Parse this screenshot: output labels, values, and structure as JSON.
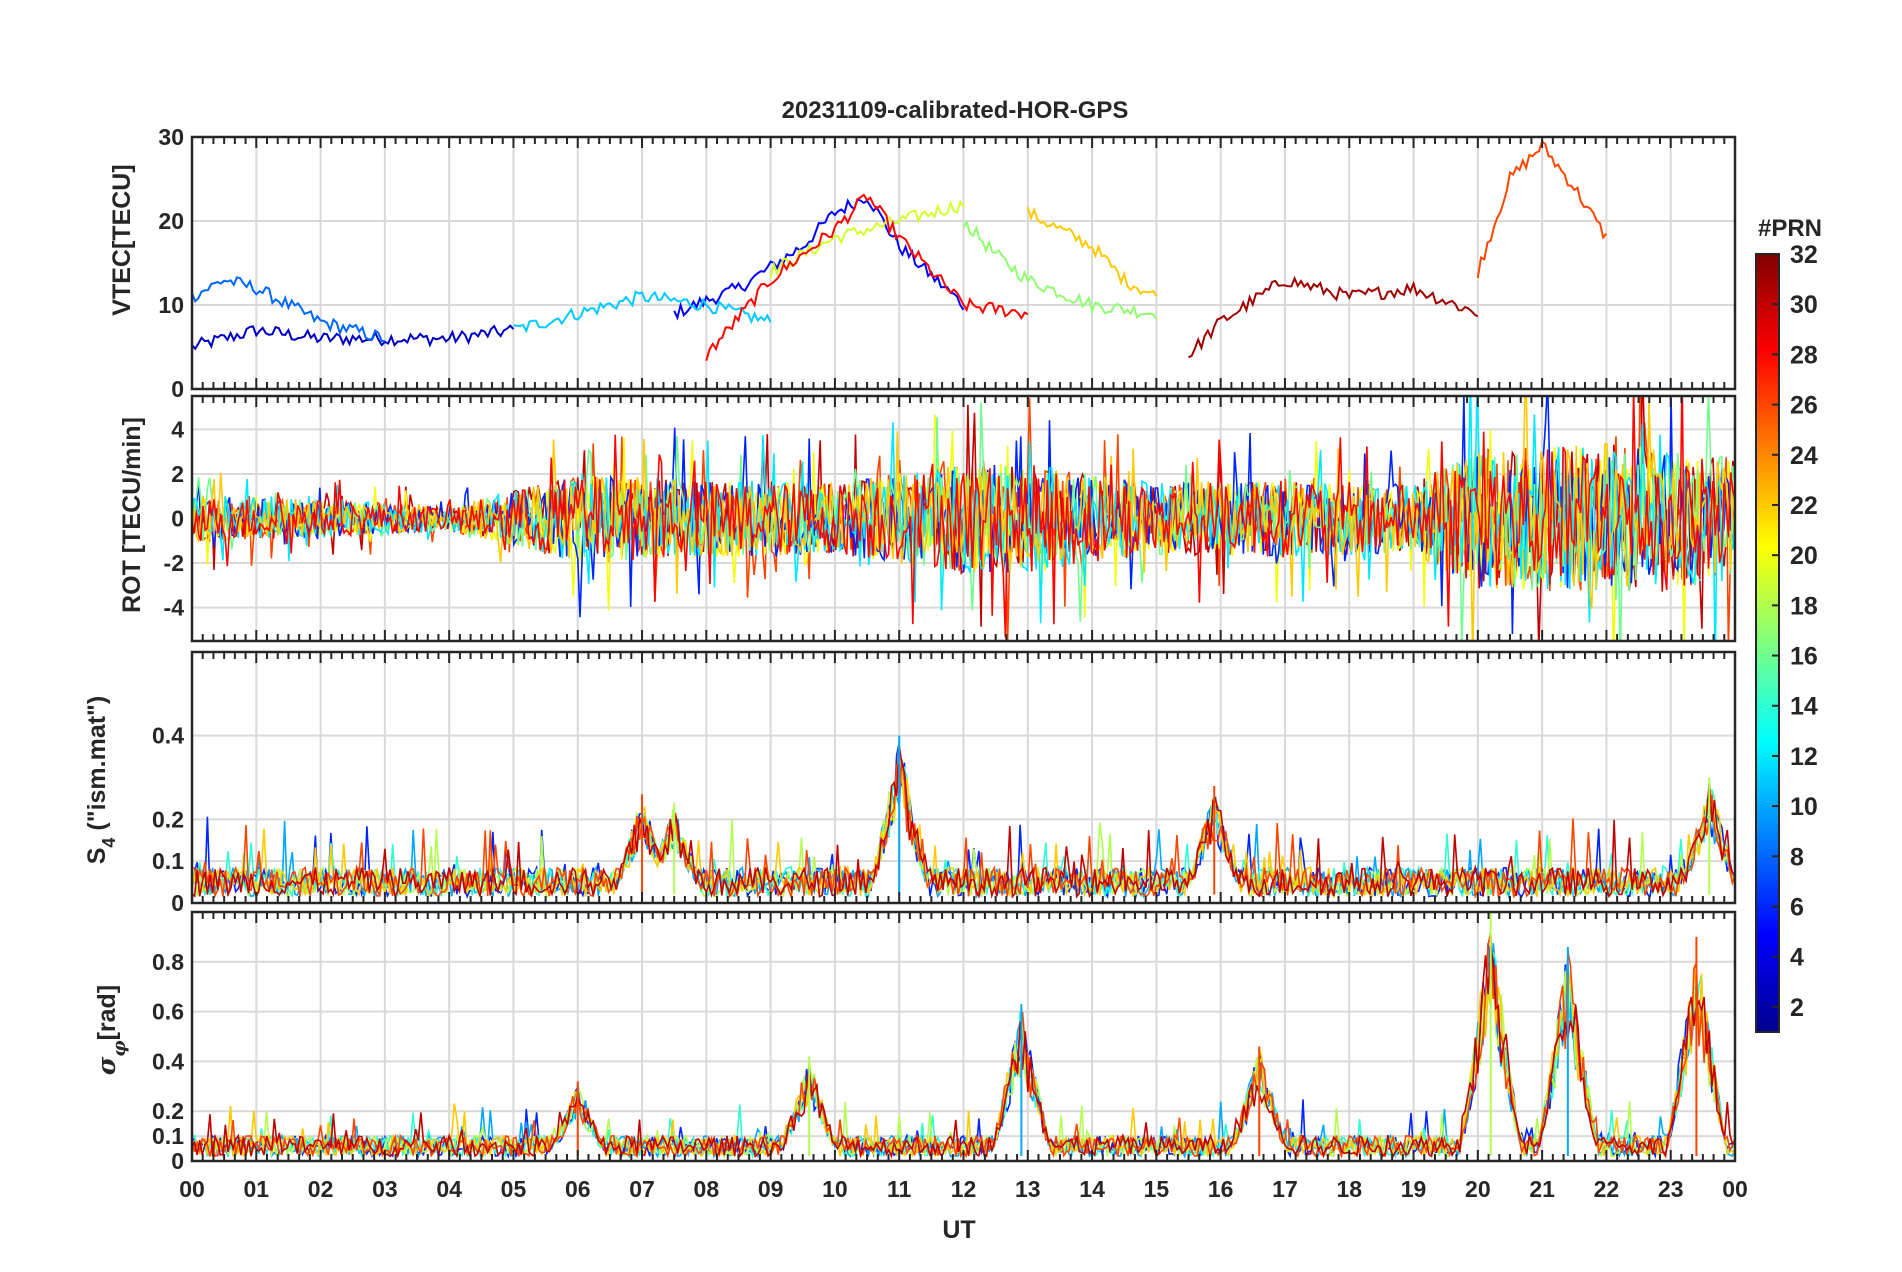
{
  "title": "20231109-calibrated-HOR-GPS",
  "x_axis": {
    "label": "UT",
    "range_hours": [
      0,
      24
    ],
    "tick_labels": [
      "00",
      "01",
      "02",
      "03",
      "04",
      "05",
      "06",
      "07",
      "08",
      "09",
      "10",
      "11",
      "12",
      "13",
      "14",
      "15",
      "16",
      "17",
      "18",
      "19",
      "20",
      "21",
      "22",
      "23",
      "00"
    ]
  },
  "colorbar": {
    "label": "#PRN",
    "range": [
      1,
      32
    ],
    "tick_labels": [
      "2",
      "4",
      "6",
      "8",
      "10",
      "12",
      "14",
      "16",
      "18",
      "20",
      "22",
      "24",
      "26",
      "28",
      "30",
      "32"
    ],
    "colormap": "jet"
  },
  "chart_data": [
    {
      "type": "line",
      "panel": "VTEC",
      "ylabel": "VTEC[TECU]",
      "ylim": [
        0,
        30
      ],
      "yticks": [
        "0",
        "10",
        "20",
        "30"
      ],
      "xlim": [
        0,
        24
      ],
      "grid": true,
      "series_note": "one line per GPS PRN satellite, colour = PRN",
      "series": [
        {
          "name": "PRN 3",
          "x": [
            0,
            1,
            2,
            3,
            4,
            5
          ],
          "values": [
            5,
            7,
            6,
            6,
            6,
            7
          ]
        },
        {
          "name": "PRN 5",
          "x": [
            7.5,
            8.5,
            9.5,
            10,
            10.5,
            11,
            12
          ],
          "values": [
            9,
            12,
            17,
            21,
            23,
            17,
            10
          ]
        },
        {
          "name": "PRN 8",
          "x": [
            0,
            0.5,
            1,
            2,
            3
          ],
          "values": [
            11,
            13,
            12,
            8,
            6
          ]
        },
        {
          "name": "PRN 11",
          "x": [
            5,
            6,
            7,
            8,
            9
          ],
          "values": [
            7,
            9,
            11,
            10,
            8
          ]
        },
        {
          "name": "PRN 17",
          "x": [
            12,
            12.5,
            13,
            14,
            15
          ],
          "values": [
            20,
            16,
            13,
            10,
            9
          ]
        },
        {
          "name": "PRN 19",
          "x": [
            9,
            10,
            11,
            12
          ],
          "values": [
            14,
            18,
            20,
            22
          ]
        },
        {
          "name": "PRN 22",
          "x": [
            13,
            13.5,
            14,
            14.5,
            15
          ],
          "values": [
            21,
            19,
            17,
            13,
            11
          ]
        },
        {
          "name": "PRN 26",
          "x": [
            20,
            20.5,
            21,
            21.5,
            22
          ],
          "values": [
            14,
            25,
            29,
            24,
            18
          ]
        },
        {
          "name": "PRN 28",
          "x": [
            8,
            9,
            10,
            10.5,
            11,
            12,
            13
          ],
          "values": [
            4,
            13,
            19,
            23,
            18,
            10,
            9
          ]
        },
        {
          "name": "PRN 31",
          "x": [
            15.5,
            16,
            17,
            18,
            19,
            20
          ],
          "values": [
            4,
            8,
            13,
            11,
            12,
            9
          ]
        }
      ]
    },
    {
      "type": "line",
      "panel": "ROT",
      "ylabel": "ROT [TECU/min]",
      "ylim": [
        -5.5,
        5.5
      ],
      "yticks": [
        "-4",
        "-2",
        "0",
        "2",
        "4"
      ],
      "xlim": [
        0,
        24
      ],
      "grid": true,
      "series_note": "dense fluctuations around 0, larger amplitude after 05 UT and after 20 UT",
      "envelope": {
        "x": [
          0,
          2,
          4,
          5,
          6,
          8,
          10,
          12,
          13,
          15,
          17,
          19,
          20,
          22,
          24
        ],
        "amplitude": [
          1.5,
          1.2,
          0.8,
          1.8,
          2.8,
          2.5,
          2.3,
          3.5,
          3.5,
          2.3,
          2.5,
          2.2,
          4.5,
          4.8,
          4.0
        ]
      }
    },
    {
      "type": "line",
      "panel": "S4",
      "ylabel": "S4 (\"ism.mat\")",
      "ylim": [
        0,
        0.6
      ],
      "yticks": [
        "0",
        "0.1",
        "0.2",
        "0.4"
      ],
      "xlim": [
        0,
        24
      ],
      "grid": true,
      "peaks": [
        {
          "x": 7.0,
          "value": 0.26
        },
        {
          "x": 7.5,
          "value": 0.24
        },
        {
          "x": 11.0,
          "value": 0.4
        },
        {
          "x": 15.9,
          "value": 0.28
        },
        {
          "x": 23.6,
          "value": 0.3
        }
      ]
    },
    {
      "type": "line",
      "panel": "sigma_phi",
      "ylabel": "σφ[rad]",
      "ylim": [
        0,
        1.0
      ],
      "yticks": [
        "0",
        "0.1",
        "0.2",
        "0.4",
        "0.6",
        "0.8"
      ],
      "xlim": [
        0,
        24
      ],
      "grid": true,
      "peaks": [
        {
          "x": 6.0,
          "value": 0.32
        },
        {
          "x": 9.6,
          "value": 0.42
        },
        {
          "x": 12.9,
          "value": 0.63
        },
        {
          "x": 16.6,
          "value": 0.46
        },
        {
          "x": 20.2,
          "value": 1.0
        },
        {
          "x": 21.4,
          "value": 0.86
        },
        {
          "x": 23.4,
          "value": 0.9
        }
      ]
    }
  ],
  "labels": {
    "vtec_ylabel": "VTEC[TECU]",
    "rot_ylabel": "ROT [TECU/min]",
    "s4_main": "S",
    "s4_sub": "4",
    "s4_rest": " (\"ism.mat\")",
    "sigma_main": "σ",
    "sigma_sub": "φ",
    "sigma_rest": "[rad]"
  }
}
